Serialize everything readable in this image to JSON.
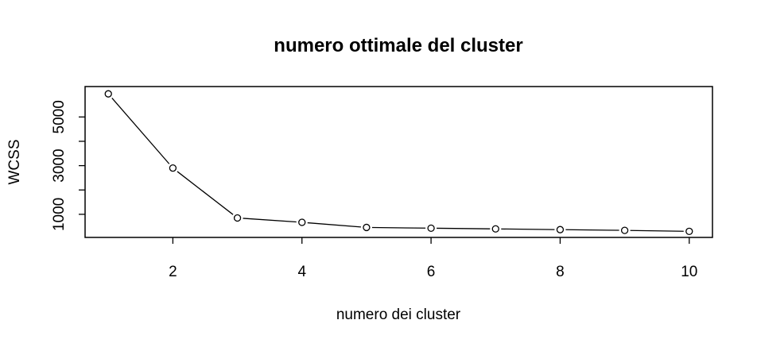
{
  "chart_data": {
    "type": "line",
    "title": "numero ottimale del cluster",
    "xlabel": "numero dei cluster",
    "ylabel": "WCSS",
    "x": [
      1,
      2,
      3,
      4,
      5,
      6,
      7,
      8,
      9,
      10
    ],
    "series": [
      {
        "values": [
          5950,
          2900,
          850,
          670,
          460,
          430,
          400,
          370,
          340,
          300
        ]
      }
    ],
    "x_ticks": [
      2,
      4,
      6,
      8,
      10
    ],
    "x_tick_labels": [
      "2",
      "4",
      "6",
      "8",
      "10"
    ],
    "y_ticks": [
      1000,
      2000,
      3000,
      4000,
      5000
    ],
    "y_tick_labels": [
      "1000",
      "",
      "3000",
      "",
      "5000"
    ],
    "xlim": [
      0.64,
      10.36
    ],
    "ylim": [
      50,
      6250
    ],
    "grid": false,
    "legend": "none",
    "marker": "open-circle",
    "line_color": "#000000"
  }
}
